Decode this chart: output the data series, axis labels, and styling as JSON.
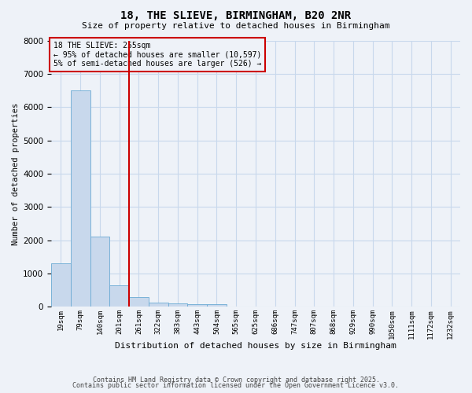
{
  "title": "18, THE SLIEVE, BIRMINGHAM, B20 2NR",
  "subtitle": "Size of property relative to detached houses in Birmingham",
  "xlabel": "Distribution of detached houses by size in Birmingham",
  "ylabel": "Number of detached properties",
  "categories": [
    "19sqm",
    "79sqm",
    "140sqm",
    "201sqm",
    "261sqm",
    "322sqm",
    "383sqm",
    "443sqm",
    "504sqm",
    "565sqm",
    "625sqm",
    "686sqm",
    "747sqm",
    "807sqm",
    "868sqm",
    "929sqm",
    "990sqm",
    "1050sqm",
    "1111sqm",
    "1172sqm",
    "1232sqm"
  ],
  "values": [
    1300,
    6500,
    2100,
    650,
    300,
    120,
    100,
    70,
    70,
    0,
    0,
    0,
    0,
    0,
    0,
    0,
    0,
    0,
    0,
    0,
    0
  ],
  "bar_color": "#c8d8ec",
  "bar_edgecolor": "#6aaad4",
  "grid_color": "#c8d8ec",
  "background_color": "#eef2f8",
  "vline_x": 3.5,
  "vline_color": "#cc0000",
  "annotation_text": "18 THE SLIEVE: 255sqm\n← 95% of detached houses are smaller (10,597)\n5% of semi-detached houses are larger (526) →",
  "annotation_box_color": "#cc0000",
  "ylim": [
    0,
    8000
  ],
  "footer1": "Contains HM Land Registry data © Crown copyright and database right 2025.",
  "footer2": "Contains public sector information licensed under the Open Government Licence v3.0."
}
